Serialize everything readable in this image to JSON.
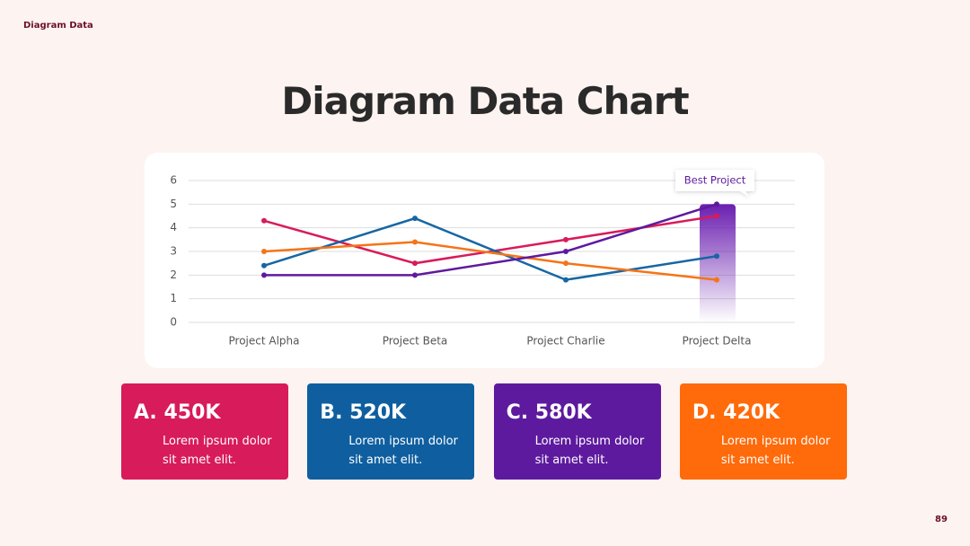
{
  "header": {
    "label": "Diagram Data"
  },
  "chart_data": {
    "type": "line",
    "title": "Diagram Data Chart",
    "categories": [
      "Project Alpha",
      "Project Beta",
      "Project Charlie",
      "Project Delta"
    ],
    "series": [
      {
        "color": "#d81b5a",
        "values": [
          4.3,
          2.5,
          3.5,
          4.5
        ]
      },
      {
        "color": "#1766a3",
        "values": [
          2.4,
          4.4,
          1.8,
          2.8
        ]
      },
      {
        "color": "#f57418",
        "values": [
          3.0,
          3.4,
          2.5,
          1.8
        ]
      },
      {
        "color": "#5e1a9e",
        "values": [
          2.0,
          2.0,
          3.0,
          5.0
        ]
      }
    ],
    "ylim": [
      0,
      6
    ],
    "yticks": [
      0,
      1,
      2,
      3,
      4,
      5,
      6
    ],
    "grid": true,
    "annotation": "Best Project"
  },
  "cards": [
    {
      "title": "A. 450K",
      "text": "Lorem ipsum dolor sit amet elit.",
      "color": "#d81b5a"
    },
    {
      "title": "B. 520K",
      "text": "Lorem ipsum dolor sit amet elit.",
      "color": "#0f5fa0"
    },
    {
      "title": "C. 580K",
      "text": "Lorem ipsum dolor sit amet elit.",
      "color": "#5e1a9e"
    },
    {
      "title": "D. 420K",
      "text": "Lorem ipsum dolor sit amet elit.",
      "color": "#ff6a0a"
    }
  ],
  "page_number": "89"
}
